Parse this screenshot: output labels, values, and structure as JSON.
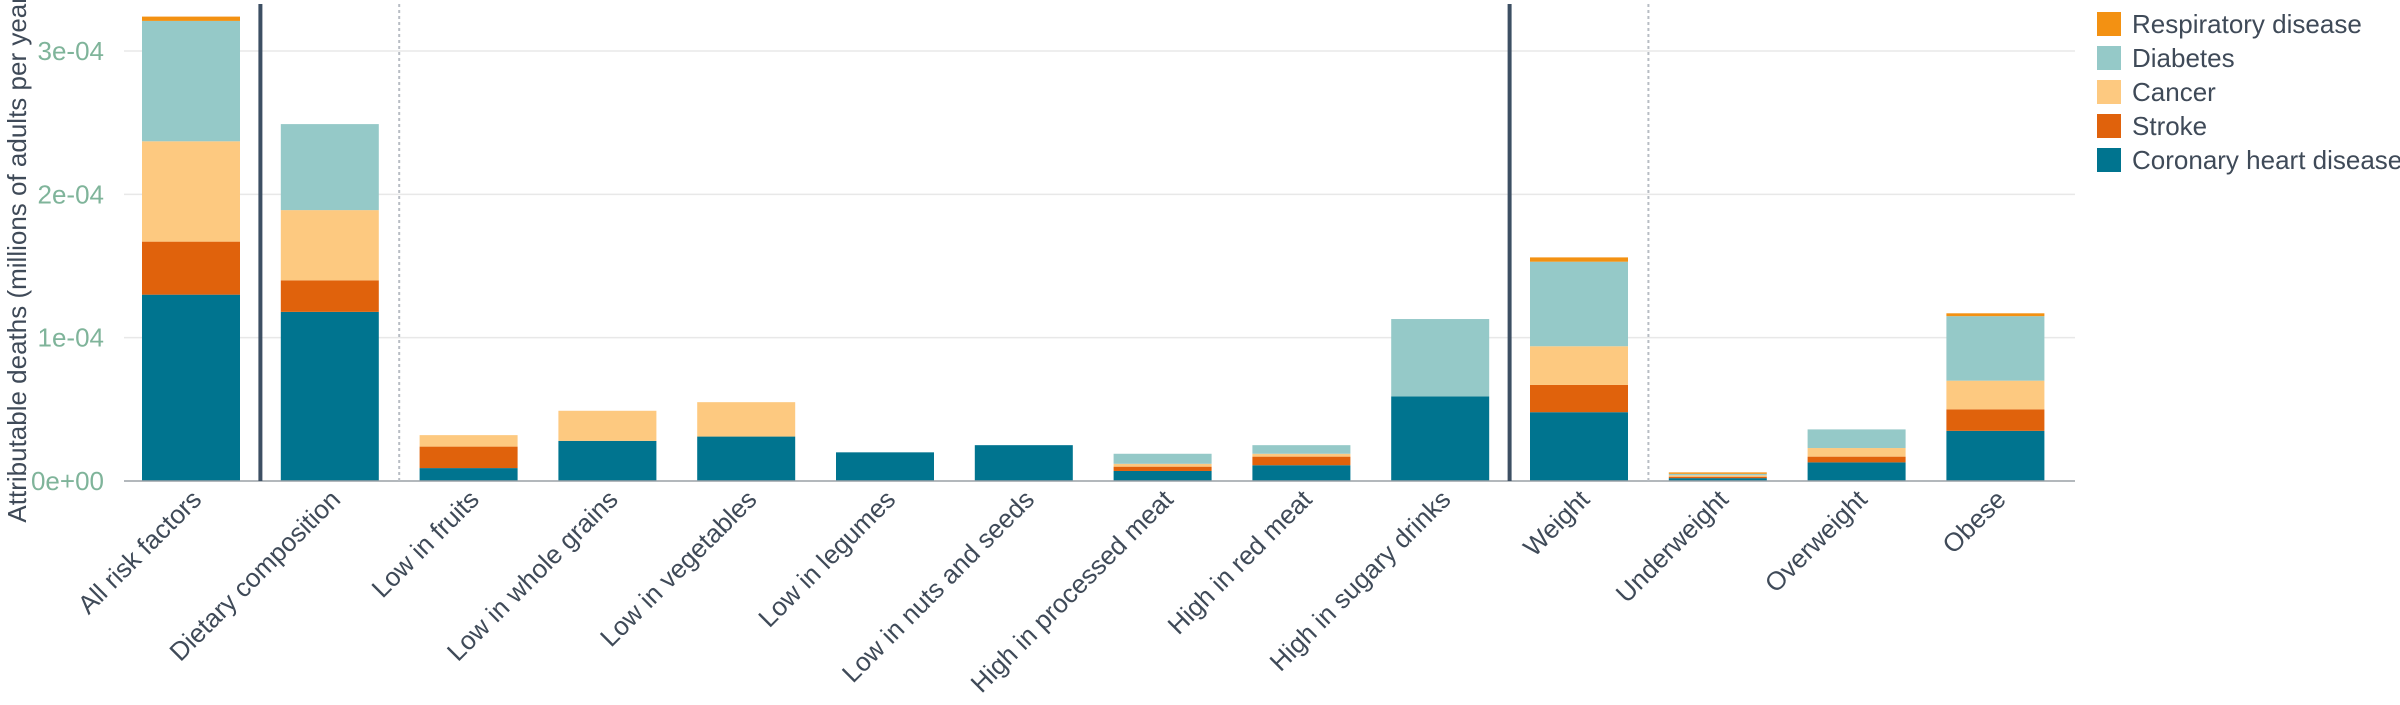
{
  "chart_data": {
    "type": "bar",
    "stacked": true,
    "ylabel": "Attributable deaths (millions of adults per year)",
    "xlabel": "",
    "ylim": [
      0,
      0.00033
    ],
    "yticks": [
      {
        "value": 0,
        "label": "0e+00"
      },
      {
        "value": 0.0001,
        "label": "1e-04"
      },
      {
        "value": 0.0002,
        "label": "2e-04"
      },
      {
        "value": 0.0003,
        "label": "3e-04"
      }
    ],
    "grid": true,
    "legend_position": "right",
    "categories": [
      "All risk factors",
      "Dietary composition",
      "Low in fruits",
      "Low in whole grains",
      "Low in vegetables",
      "Low in legumes",
      "Low in nuts and seeds",
      "High in processed meat",
      "High in red meat",
      "High in sugary drinks",
      "Weight",
      "Underweight",
      "Overweight",
      "Obese"
    ],
    "series": [
      {
        "name": "Coronary heart disease",
        "color": "#00748f",
        "values": [
          0.00013,
          0.000118,
          9e-06,
          2.8e-05,
          3.1e-05,
          2e-05,
          2.5e-05,
          7e-06,
          1.1e-05,
          5.9e-05,
          4.8e-05,
          2e-06,
          1.3e-05,
          3.5e-05
        ]
      },
      {
        "name": "Stroke",
        "color": "#e0620c",
        "values": [
          3.7e-05,
          2.2e-05,
          1.5e-05,
          0,
          0,
          0,
          0,
          3e-06,
          6e-06,
          0,
          1.9e-05,
          1e-06,
          4e-06,
          1.5e-05
        ]
      },
      {
        "name": "Cancer",
        "color": "#fdc980",
        "values": [
          7e-05,
          4.9e-05,
          8e-06,
          2.1e-05,
          2.4e-05,
          0,
          0,
          2e-06,
          2e-06,
          0,
          2.7e-05,
          1e-06,
          6e-06,
          2e-05
        ]
      },
      {
        "name": "Diabetes",
        "color": "#95c9c8",
        "values": [
          8.4e-05,
          6e-05,
          0,
          0,
          0,
          0,
          0,
          7e-06,
          6e-06,
          5.4e-05,
          5.9e-05,
          1e-06,
          1.3e-05,
          4.5e-05
        ]
      },
      {
        "name": "Respiratory disease",
        "color": "#f39112",
        "values": [
          3e-06,
          0,
          0,
          0,
          0,
          0,
          0,
          0,
          0,
          0,
          3e-06,
          1e-06,
          0,
          2e-06
        ]
      }
    ],
    "legend_order": [
      "Respiratory disease",
      "Diabetes",
      "Cancer",
      "Stroke",
      "Coronary heart disease"
    ],
    "group_separators": [
      {
        "after_category": 0,
        "style": "solid"
      },
      {
        "after_category": 1,
        "style": "dotted"
      },
      {
        "after_category": 9,
        "style": "solid"
      },
      {
        "after_category": 10,
        "style": "dotted"
      }
    ]
  }
}
